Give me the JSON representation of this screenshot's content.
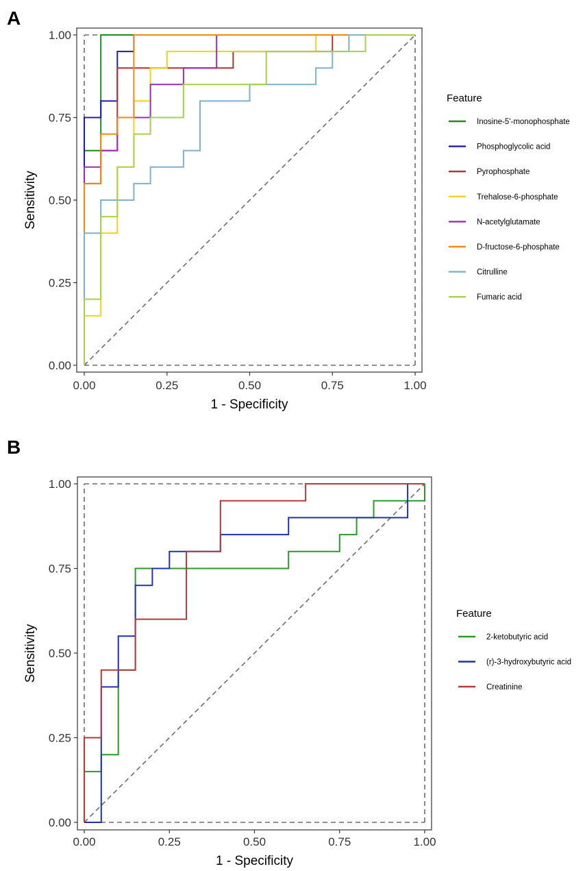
{
  "chart_data": [
    {
      "panel": "A",
      "type": "line",
      "xlabel": "1 - Specificity",
      "ylabel": "Sensitivity",
      "xlim": [
        0,
        1
      ],
      "ylim": [
        0,
        1
      ],
      "xticks": [
        "0.00",
        "0.25",
        "0.50",
        "0.75",
        "1.00"
      ],
      "yticks": [
        "0.00",
        "0.25",
        "0.50",
        "0.75",
        "1.00"
      ],
      "legend_title": "Feature",
      "legend_position": "right",
      "series": [
        {
          "name": "Inosine-5'-monophosphate",
          "color": "#1a8c1a",
          "x": [
            0,
            0,
            0.05,
            0.05,
            1
          ],
          "y": [
            0,
            0.65,
            0.65,
            1,
            1
          ]
        },
        {
          "name": "Phosphoglycolic acid",
          "color": "#1c1cb4",
          "x": [
            0,
            0,
            0.05,
            0.05,
            0.1,
            0.1,
            0.15,
            0.15,
            1
          ],
          "y": [
            0,
            0.75,
            0.75,
            0.8,
            0.8,
            0.95,
            0.95,
            1,
            1
          ]
        },
        {
          "name": "Pyrophosphate",
          "color": "#b03232",
          "x": [
            0,
            0,
            0.05,
            0.05,
            0.1,
            0.1,
            0.45,
            0.45,
            0.75,
            0.75,
            1
          ],
          "y": [
            0,
            0.55,
            0.55,
            0.65,
            0.65,
            0.9,
            0.9,
            0.95,
            0.95,
            1,
            1
          ]
        },
        {
          "name": "Trehalose-6-phosphate",
          "color": "#f2d21e",
          "x": [
            0,
            0,
            0.05,
            0.05,
            0.1,
            0.1,
            0.15,
            0.15,
            0.2,
            0.2,
            0.25,
            0.25,
            0.7,
            0.7,
            1
          ],
          "y": [
            0,
            0.15,
            0.15,
            0.4,
            0.4,
            0.6,
            0.6,
            0.8,
            0.8,
            0.9,
            0.9,
            0.95,
            0.95,
            1,
            1
          ]
        },
        {
          "name": "N-acetylglutamate",
          "color": "#9b2db4",
          "x": [
            0,
            0,
            0.05,
            0.05,
            0.1,
            0.1,
            0.2,
            0.2,
            0.3,
            0.3,
            0.4,
            0.4,
            1
          ],
          "y": [
            0,
            0.6,
            0.6,
            0.65,
            0.65,
            0.75,
            0.75,
            0.85,
            0.85,
            0.9,
            0.9,
            1,
            1
          ]
        },
        {
          "name": "D-fructose-6-phosphate",
          "color": "#ef8a14",
          "x": [
            0,
            0,
            0.05,
            0.05,
            0.1,
            0.1,
            0.15,
            0.15,
            1
          ],
          "y": [
            0,
            0.55,
            0.55,
            0.7,
            0.7,
            0.75,
            0.75,
            1,
            1
          ]
        },
        {
          "name": "Citrulline",
          "color": "#7fb0cc",
          "x": [
            0,
            0,
            0.05,
            0.05,
            0.15,
            0.15,
            0.2,
            0.2,
            0.3,
            0.3,
            0.35,
            0.35,
            0.5,
            0.5,
            0.7,
            0.7,
            0.75,
            0.75,
            0.8,
            0.8,
            1
          ],
          "y": [
            0,
            0.4,
            0.4,
            0.5,
            0.5,
            0.55,
            0.55,
            0.6,
            0.6,
            0.65,
            0.65,
            0.8,
            0.8,
            0.85,
            0.85,
            0.9,
            0.9,
            0.95,
            0.95,
            1,
            1
          ]
        },
        {
          "name": "Fumaric acid",
          "color": "#a6d24a",
          "x": [
            0,
            0,
            0.05,
            0.05,
            0.1,
            0.1,
            0.15,
            0.15,
            0.2,
            0.2,
            0.3,
            0.3,
            0.55,
            0.55,
            0.85,
            0.85,
            1
          ],
          "y": [
            0,
            0.2,
            0.2,
            0.45,
            0.45,
            0.6,
            0.6,
            0.7,
            0.7,
            0.75,
            0.75,
            0.85,
            0.85,
            0.95,
            0.95,
            1,
            1
          ]
        }
      ]
    },
    {
      "panel": "B",
      "type": "line",
      "xlabel": "1 - Specificity",
      "ylabel": "Sensitivity",
      "xlim": [
        0,
        1
      ],
      "ylim": [
        0,
        1
      ],
      "xticks": [
        "0.00",
        "0.25",
        "0.50",
        "0.75",
        "1.00"
      ],
      "yticks": [
        "0.00",
        "0.25",
        "0.50",
        "0.75",
        "1.00"
      ],
      "legend_title": "Feature",
      "legend_position": "right",
      "series": [
        {
          "name": "2-ketobutyric acid",
          "color": "#2a9a2a",
          "x": [
            0,
            0,
            0.05,
            0.05,
            0.1,
            0.1,
            0.15,
            0.15,
            0.6,
            0.6,
            0.75,
            0.75,
            0.8,
            0.8,
            0.85,
            0.85,
            1,
            1
          ],
          "y": [
            0,
            0.15,
            0.15,
            0.2,
            0.2,
            0.45,
            0.45,
            0.75,
            0.75,
            0.8,
            0.8,
            0.85,
            0.85,
            0.9,
            0.9,
            0.95,
            0.95,
            1
          ]
        },
        {
          "name": "(r)-3-hydroxybutyric acid",
          "color": "#2030b0",
          "x": [
            0,
            0.05,
            0.05,
            0.1,
            0.1,
            0.15,
            0.15,
            0.2,
            0.2,
            0.25,
            0.25,
            0.4,
            0.4,
            0.6,
            0.6,
            0.95,
            0.95,
            1
          ],
          "y": [
            0,
            0,
            0.4,
            0.4,
            0.55,
            0.55,
            0.7,
            0.7,
            0.75,
            0.75,
            0.8,
            0.8,
            0.85,
            0.85,
            0.9,
            0.9,
            1,
            1
          ]
        },
        {
          "name": "Creatinine",
          "color": "#b23a3a",
          "x": [
            0,
            0,
            0.05,
            0.05,
            0.15,
            0.15,
            0.3,
            0.3,
            0.4,
            0.4,
            0.65,
            0.65,
            1
          ],
          "y": [
            0,
            0.25,
            0.25,
            0.45,
            0.45,
            0.6,
            0.6,
            0.8,
            0.8,
            0.95,
            0.95,
            1,
            1
          ]
        }
      ]
    }
  ]
}
